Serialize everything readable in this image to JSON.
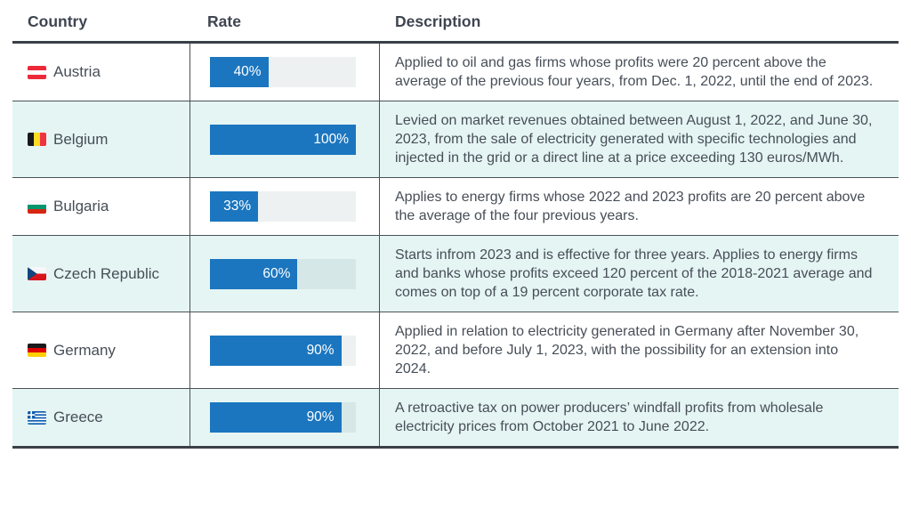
{
  "header": {
    "country": "Country",
    "rate": "Rate",
    "description": "Description"
  },
  "rows": [
    {
      "country": "Austria",
      "flag": "austria",
      "rate_percent": 40,
      "rate_label": "40%",
      "description": "Applied to oil and gas firms whose profits were 20 percent above the average of the previous four years, from Dec. 1, 2022, until the end of 2023."
    },
    {
      "country": "Belgium",
      "flag": "belgium",
      "rate_percent": 100,
      "rate_label": "100%",
      "description": "Levied on market revenues obtained between August 1, 2022, and June 30, 2023, from the sale of electricity generated with specific technologies and injected in the grid or a direct line at a price exceeding 130 euros/MWh."
    },
    {
      "country": "Bulgaria",
      "flag": "bulgaria",
      "rate_percent": 33,
      "rate_label": "33%",
      "description": "Applies to energy firms whose 2022 and 2023 profits are 20 percent above the average of the four previous years."
    },
    {
      "country": "Czech Republic",
      "flag": "czech-republic",
      "rate_percent": 60,
      "rate_label": "60%",
      "description": "Starts infrom 2023 and is effective for three years. Applies to energy firms and banks whose profits exceed 120 percent of the 2018-2021 average and comes on top of a 19 percent corporate tax rate."
    },
    {
      "country": "Germany",
      "flag": "germany",
      "rate_percent": 90,
      "rate_label": "90%",
      "description": "Applied in relation to electricity generated in Germany after November 30, 2022, and before July 1, 2023, with the possibility for an extension into 2024."
    },
    {
      "country": "Greece",
      "flag": "greece",
      "rate_percent": 90,
      "rate_label": "90%",
      "description": "A retroactive tax on power producers’ windfall profits from wholesale electricity prices from October 2021 to June 2022."
    }
  ],
  "colors": {
    "bar_fill": "#1b76bf",
    "alt_row_background": "#e5f5f4",
    "header_text": "#3e4550",
    "body_text": "#474e57"
  },
  "chart_data": {
    "type": "bar",
    "orientation": "horizontal",
    "categories": [
      "Austria",
      "Belgium",
      "Bulgaria",
      "Czech Republic",
      "Germany",
      "Greece"
    ],
    "values": [
      40,
      100,
      33,
      60,
      90,
      90
    ],
    "value_labels": [
      "40%",
      "100%",
      "33%",
      "60%",
      "90%",
      "90%"
    ],
    "title": "",
    "xlabel": "Rate",
    "ylabel": "Country",
    "xlim": [
      0,
      100
    ],
    "grid": false,
    "legend": false
  }
}
